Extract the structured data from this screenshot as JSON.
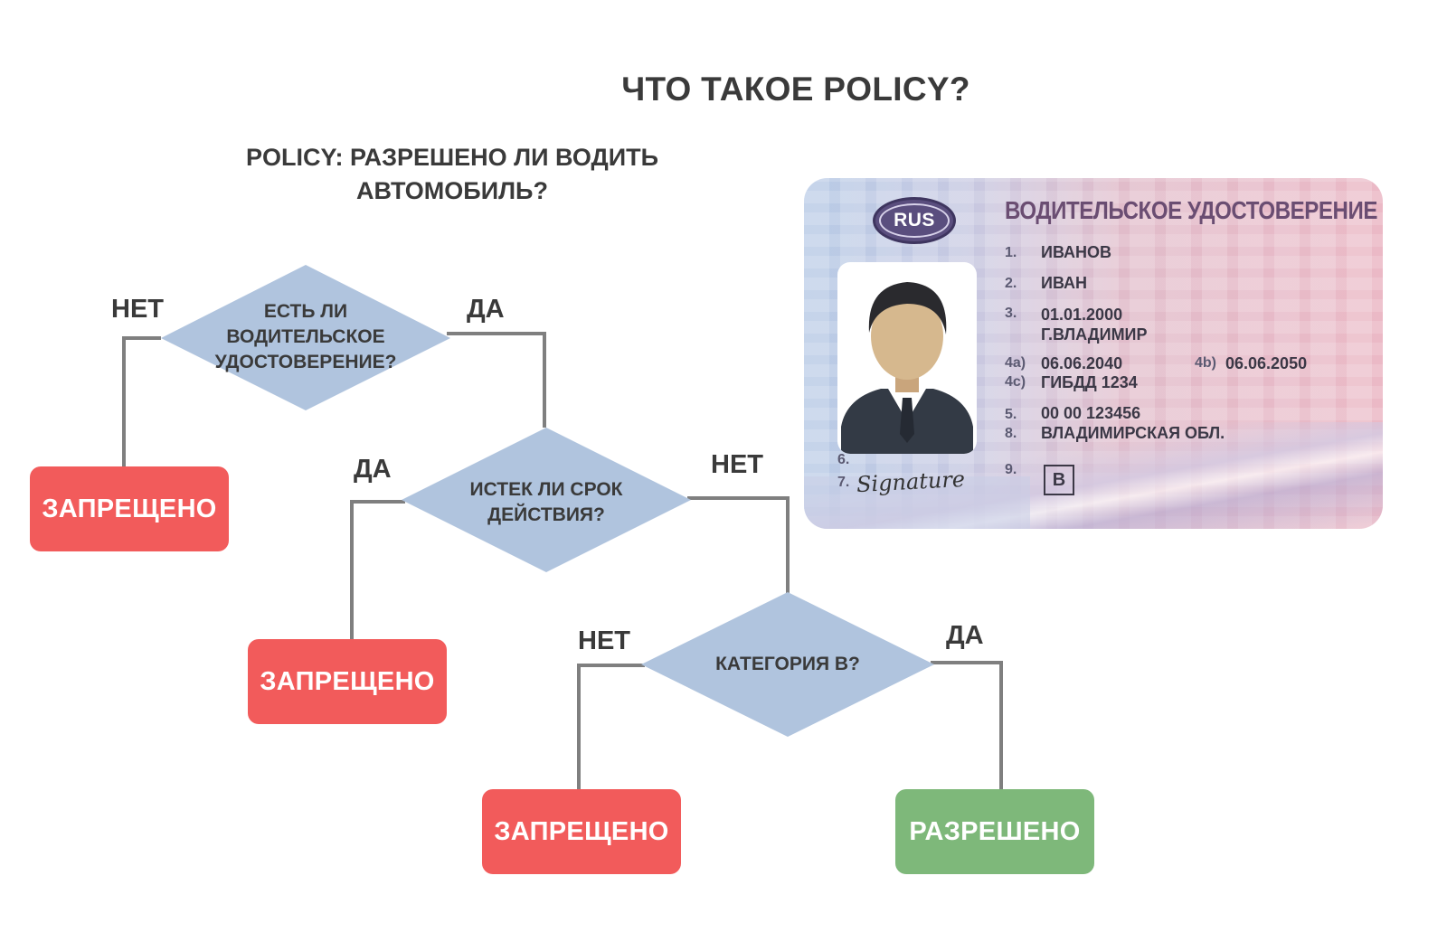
{
  "page_title": "ЧТО ТАКОЕ POLICY?",
  "subtitle": "POLICY: РАЗРЕШЕНО ЛИ ВОДИТЬ АВТОМОБИЛЬ?",
  "colors": {
    "diamond": "#b0c4de",
    "connector": "#7f7f7f",
    "deny": "#f25b5b",
    "allow": "#7eb87a",
    "text": "#3a3a3a"
  },
  "flowchart": {
    "decisions": [
      {
        "label": "ЕСТЬ ЛИ ВОДИТЕЛЬСКОЕ УДОСТОВЕРЕНИЕ?",
        "no_label": "НЕТ",
        "yes_label": "ДА"
      },
      {
        "label": "ИСТЕК ЛИ СРОК ДЕЙСТВИЯ?",
        "no_label": "НЕТ",
        "yes_label": "ДА"
      },
      {
        "label": "КАТЕГОРИЯ B?",
        "no_label": "НЕТ",
        "yes_label": "ДА"
      }
    ],
    "outcomes": [
      {
        "label": "ЗАПРЕЩЕНО",
        "kind": "deny"
      },
      {
        "label": "ЗАПРЕЩЕНО",
        "kind": "deny"
      },
      {
        "label": "ЗАПРЕЩЕНО",
        "kind": "deny"
      },
      {
        "label": "РАЗРЕШЕНО",
        "kind": "allow"
      }
    ]
  },
  "license_card": {
    "country_code": "RUS",
    "title": "ВОДИТЕЛЬСКОЕ УДОСТОВЕРЕНИЕ",
    "fields": {
      "n1": "1.",
      "surname": "ИВАНОВ",
      "n2": "2.",
      "name": "ИВАН",
      "n3": "3.",
      "birth_date": "01.01.2000",
      "birth_place": "Г.ВЛАДИМИР",
      "n4a": "4a)",
      "issue_date": "06.06.2040",
      "n4b": "4b)",
      "expiry_date": "06.06.2050",
      "n4c": "4c)",
      "authority": "ГИБДД 1234",
      "n5": "5.",
      "number": "00 00 123456",
      "n8": "8.",
      "region": "ВЛАДИМИРСКАЯ ОБЛ.",
      "n6": "6.",
      "n7": "7.",
      "signature": "Signature",
      "n9": "9.",
      "category": "B"
    }
  }
}
